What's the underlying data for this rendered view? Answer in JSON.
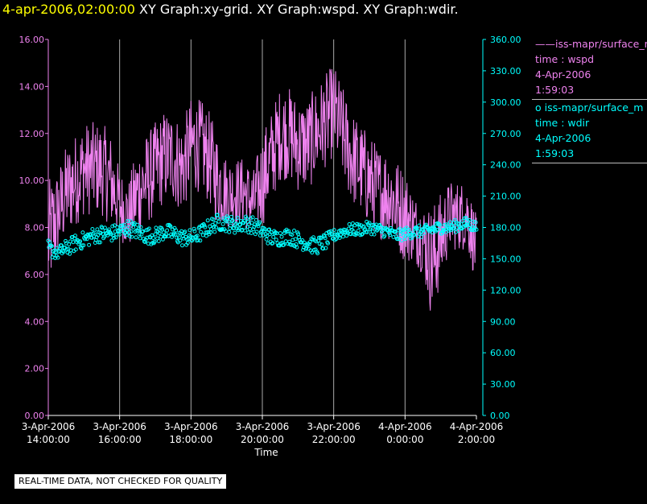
{
  "header": {
    "date": "4-apr-2006,02:00:00",
    "titles": "XY Graph:xy-grid.  XY Graph:wspd.  XY Graph:wdir."
  },
  "legend": [
    {
      "symbol": "——",
      "label": "iss-mapr/surface_m",
      "vars": "time : wspd",
      "date": "4-Apr-2006",
      "time": "1:59:03",
      "color": "#ee82ee"
    },
    {
      "symbol": "o",
      "label": "iss-mapr/surface_m",
      "vars": "time : wdir",
      "date": "4-Apr-2006",
      "time": "1:59:03",
      "color": "#00ffff"
    }
  ],
  "quality_notice": "REAL-TIME DATA, NOT CHECKED FOR QUALITY",
  "chart_data": {
    "type": "line",
    "xlabel": "Time",
    "x_range_hours": [
      0,
      12
    ],
    "x_ticks": [
      {
        "hour": 0,
        "date": "3-Apr-2006",
        "time": "14:00:00"
      },
      {
        "hour": 2,
        "date": "3-Apr-2006",
        "time": "16:00:00"
      },
      {
        "hour": 4,
        "date": "3-Apr-2006",
        "time": "18:00:00"
      },
      {
        "hour": 6,
        "date": "3-Apr-2006",
        "time": "20:00:00"
      },
      {
        "hour": 8,
        "date": "3-Apr-2006",
        "time": "22:00:00"
      },
      {
        "hour": 10,
        "date": "4-Apr-2006",
        "time": "0:00:00"
      },
      {
        "hour": 12,
        "date": "4-Apr-2006",
        "time": "2:00:00"
      }
    ],
    "grid": "vertical",
    "left_axis": {
      "range": [
        0,
        16
      ],
      "ticks": [
        "0.00",
        "2.00",
        "4.00",
        "6.00",
        "8.00",
        "10.00",
        "12.00",
        "14.00",
        "16.00"
      ],
      "color": "#ee82ee"
    },
    "right_axis": {
      "range": [
        0,
        360
      ],
      "ticks": [
        "0.00",
        "30.00",
        "60.00",
        "90.00",
        "120.00",
        "150.00",
        "180.00",
        "210.00",
        "240.00",
        "270.00",
        "300.00",
        "330.00",
        "360.00"
      ],
      "color": "#00ffff"
    },
    "series": [
      {
        "name": "wspd",
        "type": "line",
        "axis": "left",
        "color": "#ee82ee",
        "x_hours": [
          0,
          0.25,
          0.5,
          0.75,
          1,
          1.25,
          1.5,
          1.75,
          2,
          2.25,
          2.5,
          2.75,
          3,
          3.25,
          3.5,
          3.75,
          4,
          4.25,
          4.5,
          4.75,
          5,
          5.25,
          5.5,
          5.75,
          6,
          6.25,
          6.5,
          6.75,
          7,
          7.25,
          7.5,
          7.75,
          8,
          8.25,
          8.5,
          8.75,
          9,
          9.25,
          9.5,
          9.75,
          10,
          10.25,
          10.5,
          10.75,
          11,
          11.25,
          11.5,
          11.75,
          12
        ],
        "values": [
          7.5,
          8.5,
          9.5,
          10.0,
          10.5,
          10.5,
          10.5,
          10.0,
          9.0,
          8.5,
          9.5,
          10.0,
          10.5,
          11.0,
          11.0,
          10.5,
          11.5,
          11.5,
          11.0,
          10.0,
          9.5,
          9.5,
          9.5,
          9.0,
          10.0,
          11.0,
          12.0,
          12.0,
          11.5,
          11.5,
          12.0,
          12.5,
          13.0,
          12.0,
          11.0,
          10.5,
          10.0,
          9.5,
          9.5,
          9.0,
          8.5,
          8.0,
          7.5,
          6.5,
          7.5,
          8.5,
          8.5,
          8.5,
          7.0
        ],
        "amplitude": [
          2.5,
          2.0,
          2.0,
          2.0,
          2.0,
          2.0,
          2.0,
          2.0,
          1.5,
          1.5,
          2.0,
          2.0,
          2.0,
          2.0,
          2.0,
          2.0,
          2.0,
          2.0,
          2.0,
          2.0,
          1.5,
          1.5,
          1.5,
          1.5,
          2.0,
          2.0,
          2.0,
          2.0,
          2.0,
          2.0,
          2.0,
          2.0,
          2.0,
          2.0,
          2.0,
          2.0,
          2.0,
          2.0,
          2.0,
          2.0,
          2.0,
          1.5,
          1.5,
          2.5,
          2.0,
          1.5,
          1.5,
          1.5,
          1.5
        ]
      },
      {
        "name": "wdir",
        "type": "scatter",
        "axis": "right",
        "color": "#00ffff",
        "x_hours": [
          0,
          0.25,
          0.5,
          0.75,
          1,
          1.25,
          1.5,
          1.75,
          2,
          2.25,
          2.5,
          2.75,
          3,
          3.25,
          3.5,
          3.75,
          4,
          4.25,
          4.5,
          4.75,
          5,
          5.25,
          5.5,
          5.75,
          6,
          6.25,
          6.5,
          6.75,
          7,
          7.25,
          7.5,
          7.75,
          8,
          8.25,
          8.5,
          8.75,
          9,
          9.25,
          9.5,
          9.75,
          10,
          10.25,
          10.5,
          10.75,
          11,
          11.25,
          11.5,
          11.75,
          12
        ],
        "values": [
          160,
          155,
          160,
          165,
          168,
          172,
          174,
          174,
          176,
          180,
          176,
          172,
          172,
          176,
          174,
          170,
          170,
          174,
          180,
          185,
          184,
          182,
          184,
          182,
          176,
          170,
          170,
          172,
          168,
          165,
          162,
          166,
          172,
          176,
          178,
          178,
          180,
          178,
          176,
          172,
          174,
          176,
          176,
          178,
          180,
          180,
          182,
          184,
          180
        ],
        "spread": [
          8,
          6,
          8,
          8,
          8,
          8,
          8,
          8,
          8,
          8,
          8,
          8,
          8,
          8,
          8,
          8,
          8,
          8,
          8,
          8,
          8,
          8,
          8,
          8,
          8,
          8,
          8,
          8,
          8,
          8,
          8,
          8,
          6,
          6,
          6,
          6,
          6,
          6,
          6,
          6,
          6,
          6,
          6,
          6,
          6,
          6,
          6,
          6,
          6
        ]
      }
    ]
  }
}
